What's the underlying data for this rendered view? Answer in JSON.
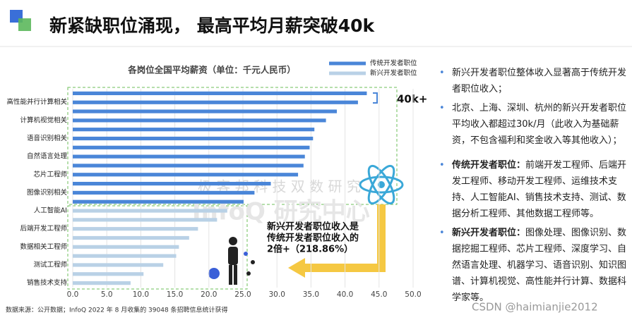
{
  "slide_title": "新紧缺职位涌现， 最高平均月薪突破40k",
  "chart_data": {
    "type": "barh",
    "title": "各岗位全国平均薪资（单位：千元人民币）",
    "categories": [
      null,
      "高性能并行计算相关",
      null,
      "计算机视觉相关",
      null,
      "语音识别相关",
      null,
      "自然语言处理",
      null,
      "芯片工程师",
      null,
      "图像识别相关",
      null,
      "人工智能AI",
      null,
      "后端开发工程师",
      null,
      "数据相关工程师",
      null,
      "测试工程师",
      null,
      "销售技术支持"
    ],
    "series": [
      {
        "name": "传统开发者职位",
        "color": "#4a86d8",
        "values": [
          43.2,
          41.9,
          38.8,
          37.2,
          35.5,
          35.3,
          34.8,
          34.1,
          33.9,
          33.1,
          29.1,
          26.7,
          25.1,
          null,
          null,
          null,
          null,
          null,
          null,
          null,
          null,
          null
        ]
      },
      {
        "name": "新兴开发者职位",
        "color": "#b9d1e6",
        "values": [
          null,
          null,
          null,
          null,
          null,
          null,
          null,
          null,
          null,
          null,
          null,
          null,
          null,
          22.7,
          21.2,
          18.4,
          17.1,
          15.6,
          15.2,
          13.3,
          10.4,
          8.5
        ]
      }
    ],
    "xlim": [
      0,
      50
    ],
    "xticks": [
      {
        "value": 0,
        "label": "0.0"
      },
      {
        "value": 5,
        "label": "5.0"
      },
      {
        "value": 10,
        "label": "10.0"
      },
      {
        "value": 15,
        "label": "15.0"
      },
      {
        "value": 20,
        "label": "20.0"
      },
      {
        "value": 25,
        "label": "25.0"
      },
      {
        "value": 30,
        "label": "30.0"
      },
      {
        "value": 35,
        "label": "35.0"
      },
      {
        "value": 40,
        "label": "40.0"
      },
      {
        "value": 45,
        "label": "45.0"
      },
      {
        "value": 50,
        "label": "50.0"
      }
    ],
    "grid": true,
    "annotation": "40k+",
    "callout": [
      "新兴开发者职位收入是",
      "传统开发者职位收入的",
      "2倍+（218.86%）"
    ]
  },
  "source": "数据来源：公开数据；InfoQ 2022 年 8 月收集的 39048 条招聘信息统计获得",
  "watermarks": [
    "极 客 邦 科 技 双 数 研 究",
    "InfoQ 研究中心",
    "CSDN @haimianjie2012"
  ],
  "bullets": [
    {
      "text": "新兴开发者职位整体收入显著高于传统开发者职位收入；"
    },
    {
      "text": "北京、上海、深圳、杭州的新兴开发者职位平均收入都超过30k/月（此收入为基础薪资，不包含福利和奖金收入等其他收入）；"
    },
    {
      "label": "传统开发者职位：",
      "text": "前端开发工程师、后端开发工程师、移动开发工程师、运维技术支持、人工智能AI、销售技术支持、测试、数据分析工程师、其他数据工程师等。"
    },
    {
      "label": "新兴开发者职位：",
      "text": "图像处理、图像识别、数据挖掘工程师、芯片工程师、深度学习、自然语言处理、机器学习、语音识别、知识图谱、计算机视觉、高性能并行计算、数据科学家等。"
    }
  ]
}
